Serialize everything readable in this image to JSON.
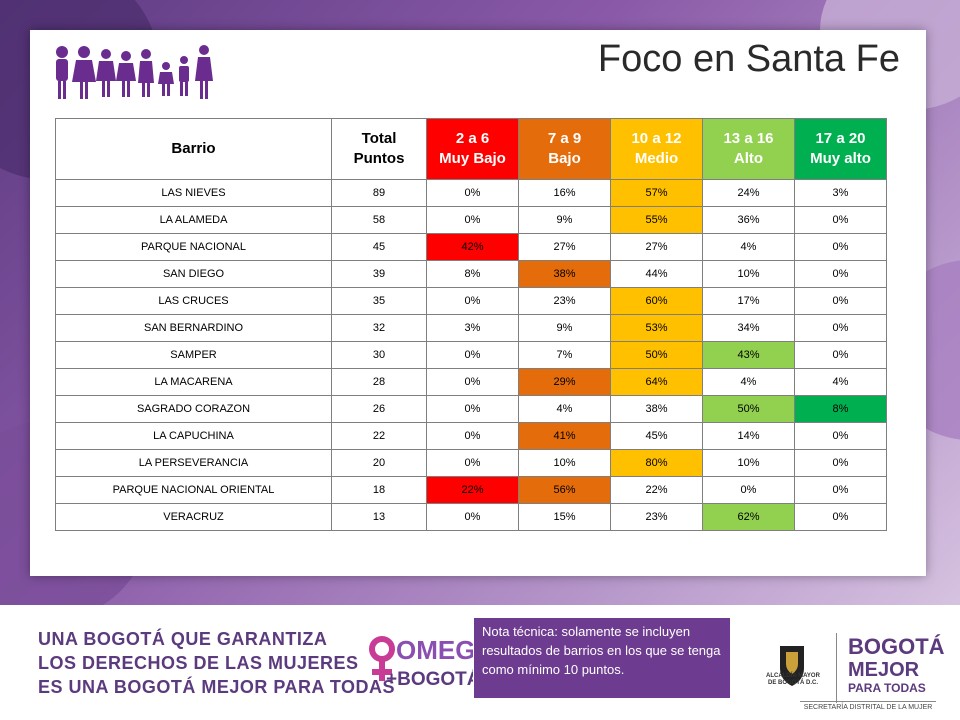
{
  "header": {
    "title": "Foco en Santa Fe"
  },
  "colors": {
    "muy_bajo": "#ff0000",
    "bajo": "#e46c0a",
    "medio": "#ffc000",
    "alto": "#92d050",
    "muy_alto": "#00b050",
    "brand_purple": "#5c3a7e"
  },
  "table": {
    "headers": [
      {
        "line1": "Barrio",
        "line2": ""
      },
      {
        "line1": "Total",
        "line2": "Puntos"
      },
      {
        "line1": "2 a 6",
        "line2": "Muy Bajo"
      },
      {
        "line1": "7 a 9",
        "line2": "Bajo"
      },
      {
        "line1": "10 a 12",
        "line2": "Medio"
      },
      {
        "line1": "13 a 16",
        "line2": "Alto"
      },
      {
        "line1": "17 a 20",
        "line2": "Muy alto"
      }
    ],
    "rows": [
      {
        "barrio": "LAS NIEVES",
        "total": "89",
        "v": [
          "0%",
          "16%",
          "57%",
          "24%",
          "3%"
        ],
        "hl": 2
      },
      {
        "barrio": "LA ALAMEDA",
        "total": "58",
        "v": [
          "0%",
          "9%",
          "55%",
          "36%",
          "0%"
        ],
        "hl": 2
      },
      {
        "barrio": "PARQUE NACIONAL",
        "total": "45",
        "v": [
          "42%",
          "27%",
          "27%",
          "4%",
          "0%"
        ],
        "hl": 0
      },
      {
        "barrio": "SAN DIEGO",
        "total": "39",
        "v": [
          "8%",
          "38%",
          "44%",
          "10%",
          "0%"
        ],
        "hl": 1
      },
      {
        "barrio": "LAS CRUCES",
        "total": "35",
        "v": [
          "0%",
          "23%",
          "60%",
          "17%",
          "0%"
        ],
        "hl": 2
      },
      {
        "barrio": "SAN BERNARDINO",
        "total": "32",
        "v": [
          "3%",
          "9%",
          "53%",
          "34%",
          "0%"
        ],
        "hl": 2
      },
      {
        "barrio": "SAMPER",
        "total": "30",
        "v": [
          "0%",
          "7%",
          "50%",
          "43%",
          "0%"
        ],
        "hl": [
          2,
          3
        ]
      },
      {
        "barrio": "LA MACARENA",
        "total": "28",
        "v": [
          "0%",
          "29%",
          "64%",
          "4%",
          "4%"
        ],
        "hl": [
          1,
          2
        ]
      },
      {
        "barrio": "SAGRADO CORAZON",
        "total": "26",
        "v": [
          "0%",
          "4%",
          "38%",
          "50%",
          "8%"
        ],
        "hl": [
          3,
          4
        ]
      },
      {
        "barrio": "LA CAPUCHINA",
        "total": "22",
        "v": [
          "0%",
          "41%",
          "45%",
          "14%",
          "0%"
        ],
        "hl": 1
      },
      {
        "barrio": "LA PERSEVERANCIA",
        "total": "20",
        "v": [
          "0%",
          "10%",
          "80%",
          "10%",
          "0%"
        ],
        "hl": 2
      },
      {
        "barrio": "PARQUE NACIONAL ORIENTAL",
        "total": "18",
        "v": [
          "22%",
          "56%",
          "22%",
          "0%",
          "0%"
        ],
        "hl": [
          0,
          1
        ]
      },
      {
        "barrio": "VERACRUZ",
        "total": "13",
        "v": [
          "0%",
          "15%",
          "23%",
          "62%",
          "0%"
        ],
        "hl": 3
      }
    ]
  },
  "footer": {
    "slogan": [
      "UNA BOGOTÁ QUE GARANTIZA",
      "LOS DERECHOS DE LAS MUJERES",
      "ES UNA BOGOTÁ MEJOR PARA TODAS"
    ],
    "omeg_logo": [
      "OMEG",
      "+BOGOTÁ"
    ],
    "note": "Nota técnica: solamente se incluyen resultados de barrios en los que se tenga como mínimo 10 puntos.",
    "alcaldia": [
      "ALCALDÍA MAYOR",
      "DE BOGOTÁ D.C."
    ],
    "bmpt": [
      "BOGOTÁ",
      "MEJOR",
      "PARA TODAS"
    ],
    "secretaria": "SECRETARÍA DISTRITAL DE LA MUJER"
  }
}
